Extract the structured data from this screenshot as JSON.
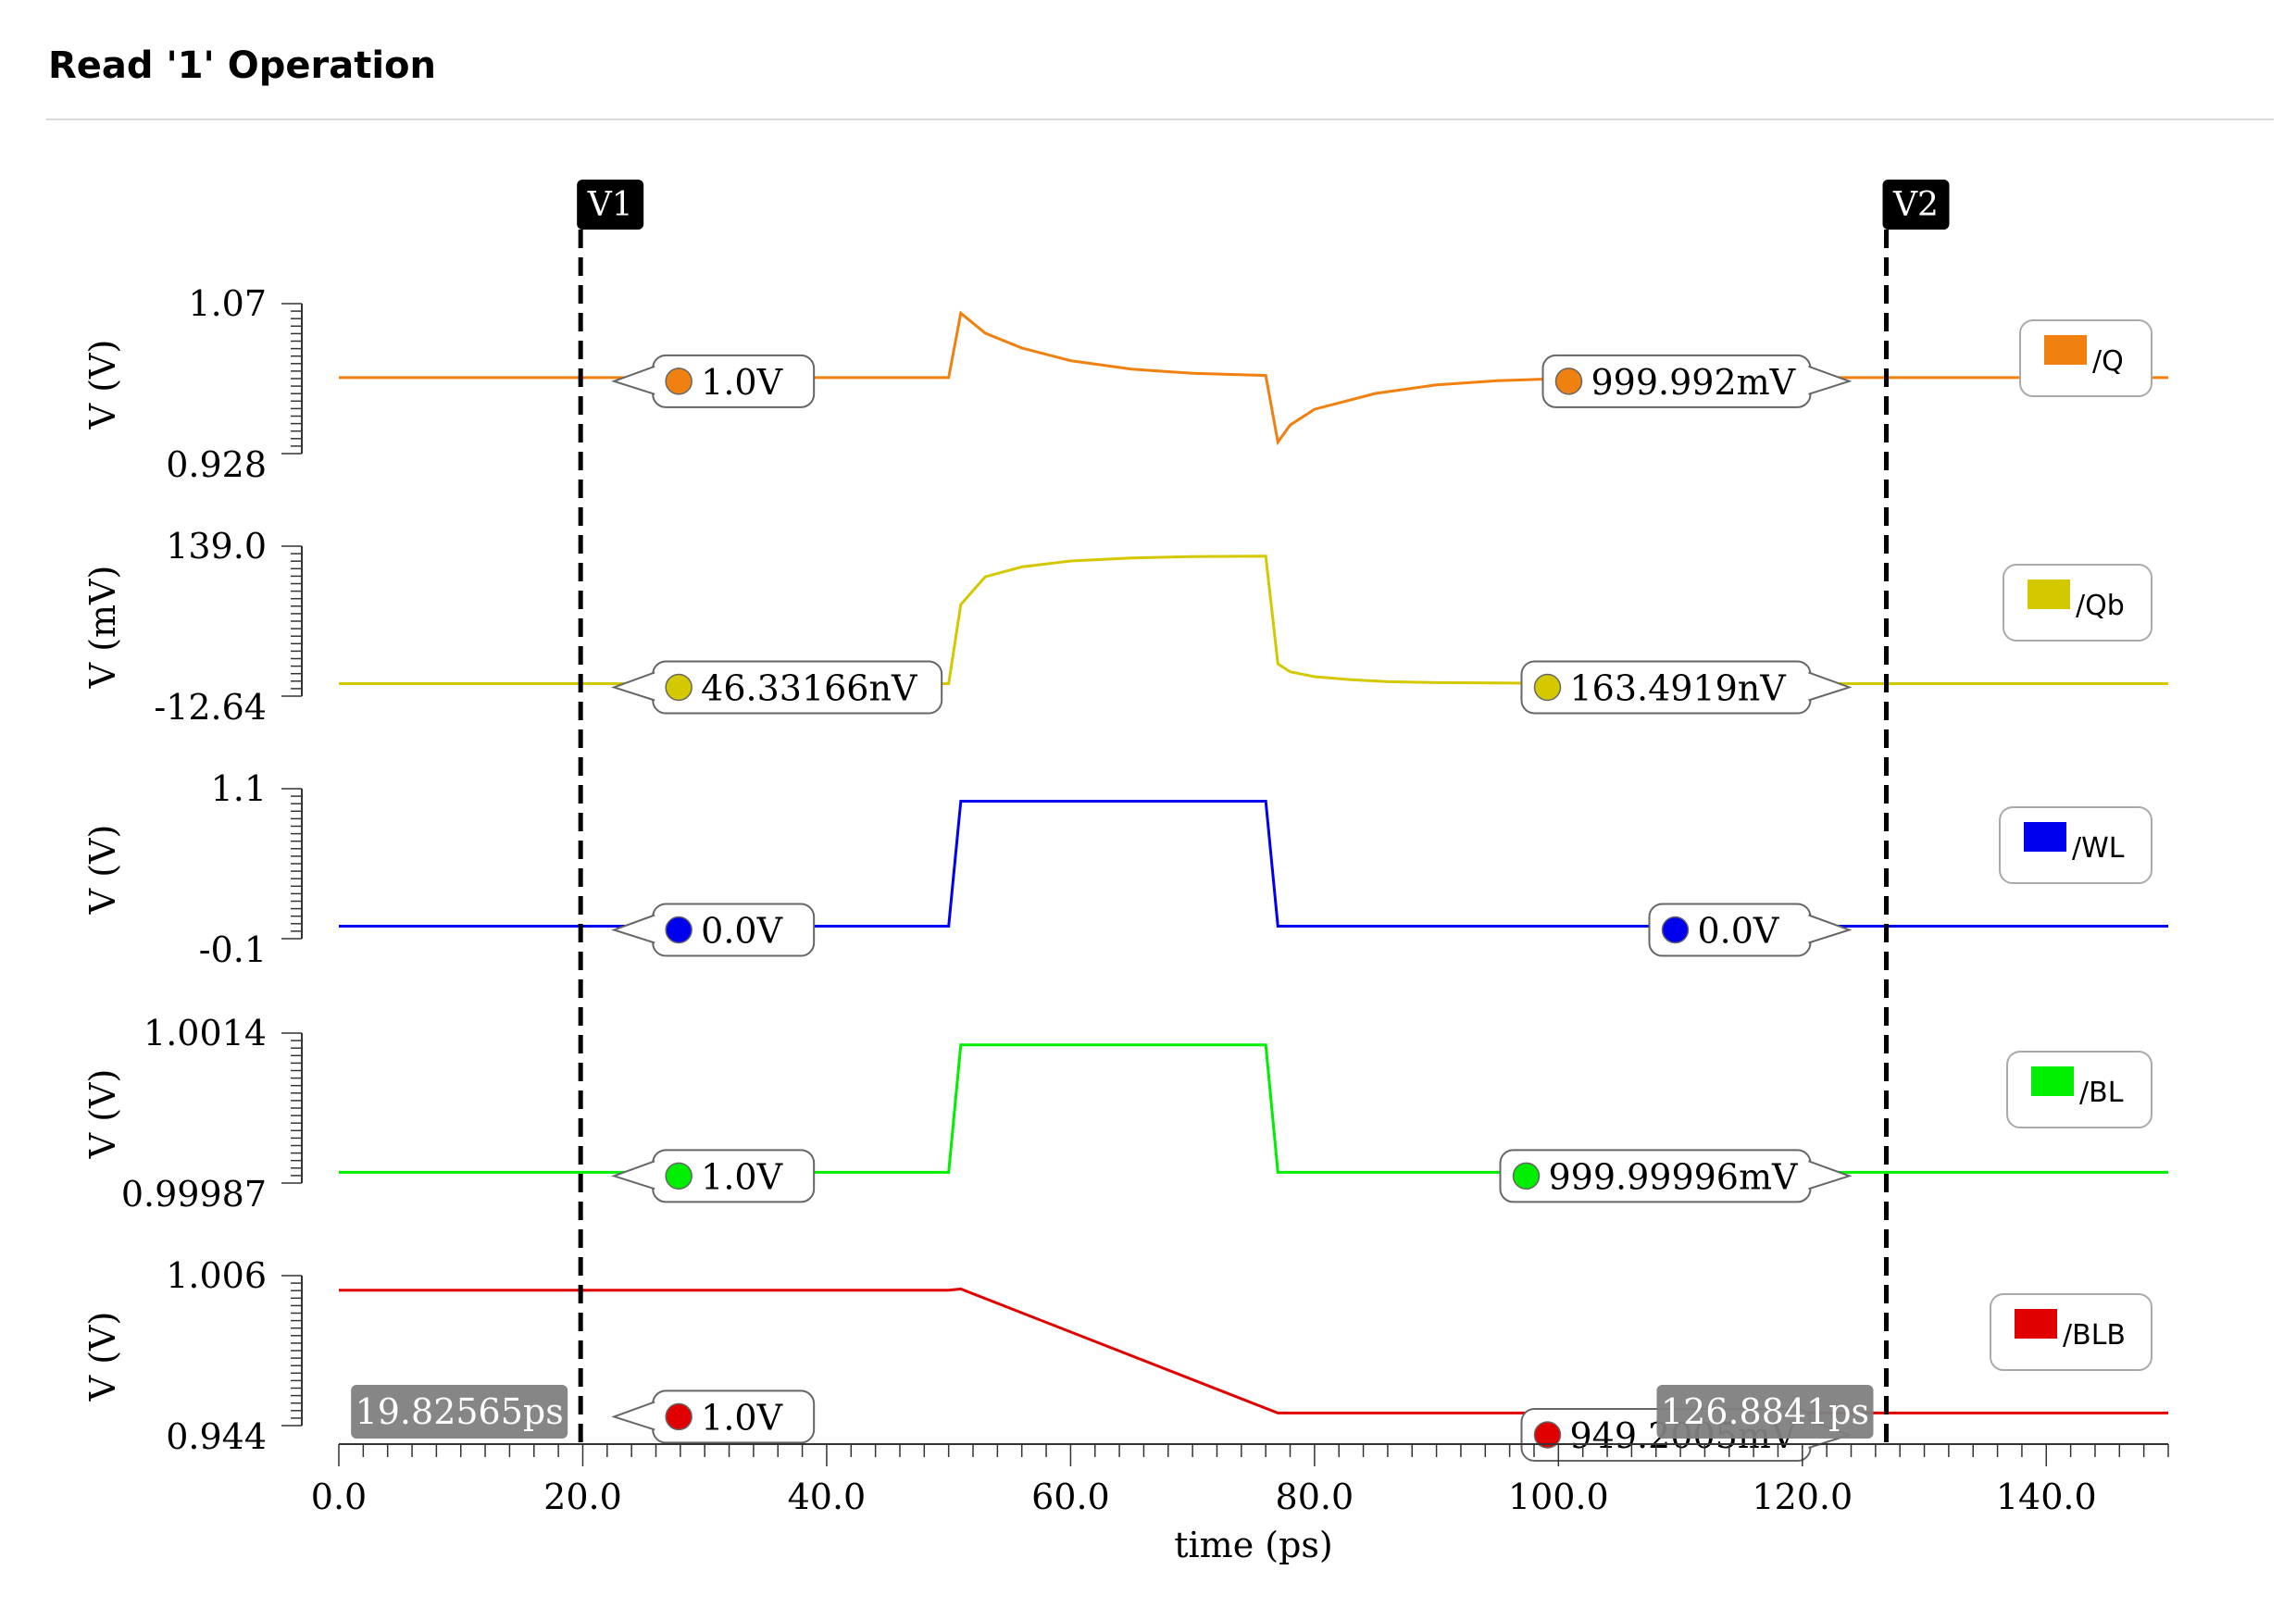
{
  "chart_data": {
    "type": "line",
    "title": "Read '1' Operation",
    "xlabel": "time (ps)",
    "xlim": [
      0,
      150
    ],
    "xticks": [
      0,
      20,
      40,
      60,
      80,
      100,
      120,
      140
    ],
    "xtick_labels": [
      "0.0",
      "20.0",
      "40.0",
      "60.0",
      "80.0",
      "100.0",
      "120.0",
      "140.0"
    ],
    "cursors": [
      {
        "name": "V1",
        "x": 19.82565,
        "readout": "19.82565ps"
      },
      {
        "name": "V2",
        "x": 126.8841,
        "readout": "126.8841ps"
      }
    ],
    "series": [
      {
        "name": "/Q",
        "color": "#f08010",
        "ylabel": "V (V)",
        "ylim": [
          0.928,
          1.07
        ],
        "ytick_labels": [
          "1.07",
          "0.928"
        ],
        "x": [
          0,
          50,
          51,
          53,
          56,
          60,
          65,
          70,
          76,
          77,
          78,
          80,
          85,
          90,
          95,
          100,
          110,
          120,
          150
        ],
        "y": [
          1.0,
          1.0,
          1.061,
          1.042,
          1.028,
          1.016,
          1.008,
          1.004,
          1.002,
          0.939,
          0.955,
          0.97,
          0.985,
          0.993,
          0.997,
          0.999,
          1.0,
          1.0,
          1.0
        ],
        "markers": [
          {
            "cursor": "V1",
            "label": "1.0V"
          },
          {
            "cursor": "V2",
            "label": "999.992mV"
          }
        ]
      },
      {
        "name": "/Qb",
        "color": "#d4c800",
        "ylabel": "V (mV)",
        "ylim": [
          -12.64,
          139.0
        ],
        "ytick_labels": [
          "139.0",
          "-12.64"
        ],
        "x": [
          0,
          50,
          51,
          53,
          56,
          60,
          65,
          70,
          76,
          77,
          78,
          80,
          83,
          86,
          90,
          100,
          110,
          150
        ],
        "y": [
          0,
          0,
          80,
          108,
          118,
          124,
          127,
          128.5,
          129,
          20,
          12,
          7,
          4,
          2,
          1,
          0.3,
          0,
          0
        ],
        "markers": [
          {
            "cursor": "V1",
            "label": "46.33166nV"
          },
          {
            "cursor": "V2",
            "label": "163.4919nV"
          }
        ]
      },
      {
        "name": "/WL",
        "color": "#0000ee",
        "ylabel": "V (V)",
        "ylim": [
          -0.1,
          1.1
        ],
        "ytick_labels": [
          "1.1",
          "-0.1"
        ],
        "x": [
          0,
          50,
          51,
          76,
          77,
          150
        ],
        "y": [
          0,
          0,
          1.0,
          1.0,
          0,
          0
        ],
        "markers": [
          {
            "cursor": "V1",
            "label": "0.0V"
          },
          {
            "cursor": "V2",
            "label": "0.0V"
          }
        ]
      },
      {
        "name": "/BL",
        "color": "#00ee00",
        "ylabel": "V (V)",
        "ylim": [
          0.99987,
          1.0014
        ],
        "ytick_labels": [
          "1.0014",
          "0.99987"
        ],
        "x": [
          0,
          50,
          51,
          76,
          77,
          150
        ],
        "y": [
          0.99998,
          0.99998,
          1.00128,
          1.00128,
          0.99998,
          0.99998
        ],
        "markers": [
          {
            "cursor": "V1",
            "label": "1.0V"
          },
          {
            "cursor": "V2",
            "label": "999.99996mV"
          }
        ]
      },
      {
        "name": "/BLB",
        "color": "#e00000",
        "ylabel": "V (V)",
        "ylim": [
          0.944,
          1.006
        ],
        "ytick_labels": [
          "1.006",
          "0.944"
        ],
        "x": [
          0,
          50,
          51,
          77,
          150
        ],
        "y": [
          1.0,
          1.0,
          1.0005,
          0.9492,
          0.9492
        ],
        "markers": [
          {
            "cursor": "V1",
            "label": "1.0V"
          },
          {
            "cursor": "V2",
            "label": "949.2005mV"
          }
        ]
      }
    ]
  }
}
